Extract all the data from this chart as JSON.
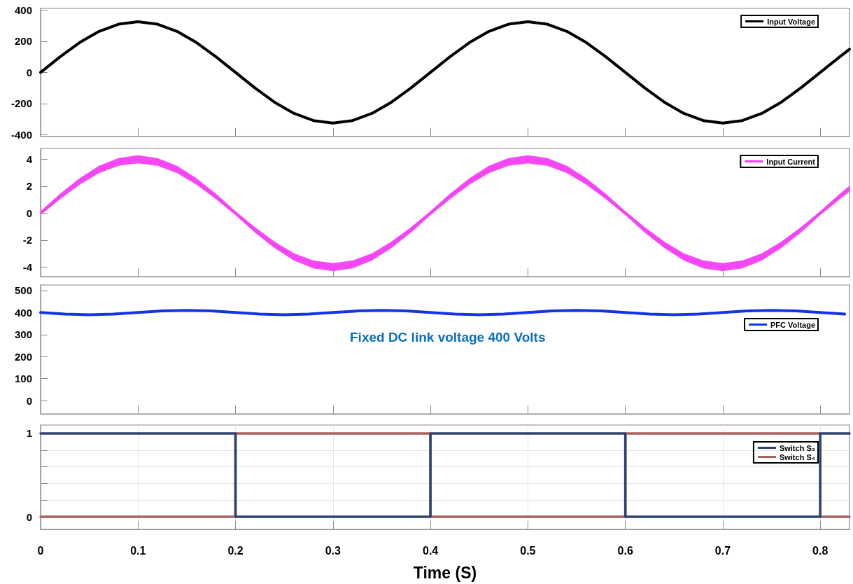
{
  "chart_data": [
    {
      "type": "line",
      "x": [
        0,
        0.02,
        0.04,
        0.06,
        0.08,
        0.1,
        0.12,
        0.14,
        0.16,
        0.18,
        0.2,
        0.22,
        0.24,
        0.26,
        0.28,
        0.3,
        0.32,
        0.34,
        0.36,
        0.38,
        0.4,
        0.42,
        0.44,
        0.46,
        0.48,
        0.5,
        0.52,
        0.54,
        0.56,
        0.58,
        0.6,
        0.62,
        0.64,
        0.66,
        0.68,
        0.7,
        0.72,
        0.74,
        0.76,
        0.78,
        0.8,
        0.82,
        0.83
      ],
      "series": [
        {
          "name": "Input Voltage",
          "color": "#000000",
          "values": [
            0,
            100,
            191,
            263,
            309,
            325,
            309,
            263,
            191,
            100,
            0,
            -100,
            -191,
            -263,
            -309,
            -325,
            -309,
            -263,
            -191,
            -100,
            0,
            100,
            191,
            263,
            309,
            325,
            309,
            263,
            191,
            100,
            0,
            -100,
            -191,
            -263,
            -309,
            -325,
            -309,
            -263,
            -191,
            -100,
            0,
            100,
            148
          ]
        }
      ],
      "xlim": [
        0,
        0.83
      ],
      "xticks": [
        0,
        0.1,
        0.2,
        0.3,
        0.4,
        0.5,
        0.6,
        0.7,
        0.8
      ],
      "ylim": [
        -410,
        410
      ],
      "yticks": [
        -400,
        -200,
        0,
        200,
        400
      ],
      "grid": false,
      "legend": "top right",
      "tick_labels": "y"
    },
    {
      "type": "line",
      "x": [
        0,
        0.02,
        0.04,
        0.06,
        0.08,
        0.1,
        0.12,
        0.14,
        0.16,
        0.18,
        0.2,
        0.22,
        0.24,
        0.26,
        0.28,
        0.3,
        0.32,
        0.34,
        0.36,
        0.38,
        0.4,
        0.42,
        0.44,
        0.46,
        0.48,
        0.5,
        0.52,
        0.54,
        0.56,
        0.58,
        0.6,
        0.62,
        0.64,
        0.66,
        0.68,
        0.7,
        0.72,
        0.74,
        0.76,
        0.78,
        0.8,
        0.82,
        0.83
      ],
      "series": [
        {
          "name": "Input Current",
          "color": "#f43ff4",
          "values": [
            0,
            1.24,
            2.35,
            3.24,
            3.8,
            4.0,
            3.8,
            3.24,
            2.35,
            1.24,
            0,
            -1.24,
            -2.35,
            -3.24,
            -3.8,
            -4.0,
            -3.8,
            -3.24,
            -2.35,
            -1.24,
            0,
            1.24,
            2.35,
            3.24,
            3.8,
            4.0,
            3.8,
            3.24,
            2.35,
            1.24,
            0,
            -1.24,
            -2.35,
            -3.24,
            -3.8,
            -4.0,
            -3.8,
            -3.24,
            -2.35,
            -1.24,
            0,
            1.24,
            1.82
          ],
          "lower": [
            -0.15,
            1.04,
            2.11,
            2.97,
            3.51,
            3.7,
            3.51,
            2.97,
            2.11,
            1.04,
            -0.15,
            -1.44,
            -2.59,
            -3.51,
            -4.09,
            -4.3,
            -4.09,
            -3.51,
            -2.59,
            -1.44,
            -0.15,
            1.04,
            2.11,
            2.97,
            3.51,
            3.7,
            3.51,
            2.97,
            2.11,
            1.04,
            -0.15,
            -1.44,
            -2.59,
            -3.51,
            -4.09,
            -4.3,
            -4.09,
            -3.51,
            -2.59,
            -1.44,
            -0.15,
            1.04,
            1.6
          ],
          "upper": [
            0.15,
            1.44,
            2.59,
            3.51,
            4.09,
            4.3,
            4.09,
            3.51,
            2.59,
            1.44,
            0.15,
            -1.04,
            -2.11,
            -2.97,
            -3.51,
            -3.7,
            -3.51,
            -2.97,
            -2.11,
            -1.04,
            0.15,
            1.44,
            2.59,
            3.51,
            4.09,
            4.3,
            4.09,
            3.51,
            2.59,
            1.44,
            0.15,
            -1.04,
            -2.11,
            -2.97,
            -3.51,
            -3.7,
            -3.51,
            -2.97,
            -2.11,
            -1.04,
            0.15,
            1.44,
            2.04
          ]
        }
      ],
      "xlim": [
        0,
        0.83
      ],
      "xticks": [
        0,
        0.1,
        0.2,
        0.3,
        0.4,
        0.5,
        0.6,
        0.7,
        0.8
      ],
      "ylim": [
        -4.7,
        4.8
      ],
      "yticks": [
        -4,
        -2,
        0,
        2,
        4
      ],
      "grid": false,
      "legend": "top right",
      "tick_labels": "y"
    },
    {
      "type": "line",
      "x": [
        0,
        0.025,
        0.05,
        0.075,
        0.1,
        0.125,
        0.15,
        0.175,
        0.2,
        0.225,
        0.25,
        0.275,
        0.3,
        0.325,
        0.35,
        0.375,
        0.4,
        0.425,
        0.45,
        0.475,
        0.5,
        0.525,
        0.55,
        0.575,
        0.6,
        0.625,
        0.65,
        0.675,
        0.7,
        0.725,
        0.75,
        0.775,
        0.8,
        0.825
      ],
      "series": [
        {
          "name": "PFC Voltage",
          "color": "#1533e6",
          "values": [
            400,
            393,
            390,
            393,
            400,
            407,
            410,
            407,
            400,
            393,
            390,
            393,
            400,
            407,
            410,
            407,
            400,
            393,
            390,
            393,
            400,
            407,
            410,
            407,
            400,
            393,
            390,
            393,
            400,
            407,
            410,
            407,
            400,
            393
          ]
        }
      ],
      "annotations": [
        "Fixed DC link voltage 400 Volts"
      ],
      "xlim": [
        0,
        0.83
      ],
      "xticks": [
        0,
        0.1,
        0.2,
        0.3,
        0.4,
        0.5,
        0.6,
        0.7,
        0.8
      ],
      "ylim": [
        -60,
        525
      ],
      "yticks": [
        0,
        100,
        200,
        300,
        400,
        500
      ],
      "grid": false,
      "legend": "top right",
      "tick_labels": "y"
    },
    {
      "type": "step",
      "x": [
        0,
        0.2,
        0.4,
        0.6,
        0.8,
        0.83
      ],
      "xlabel": "Time (S)",
      "series": [
        {
          "name": "Switch S₃",
          "color": "#2e4470",
          "values": [
            1,
            0,
            1,
            0,
            1,
            1
          ]
        },
        {
          "name": "Switch S₄",
          "color": "#a8615f",
          "values": [
            0,
            1,
            0,
            1,
            0,
            0
          ]
        }
      ],
      "xlim": [
        0,
        0.83
      ],
      "xticks": [
        0,
        0.1,
        0.2,
        0.3,
        0.4,
        0.5,
        0.6,
        0.7,
        0.8
      ],
      "ylim": [
        -0.15,
        1.1
      ],
      "yticks": [
        0,
        {
          "value": 0.2,
          "label": null
        },
        {
          "value": 0.4,
          "label": null
        },
        {
          "value": 0.6,
          "label": null
        },
        {
          "value": 0.8,
          "label": null
        },
        1
      ],
      "grid": true,
      "legend": "top right"
    }
  ]
}
